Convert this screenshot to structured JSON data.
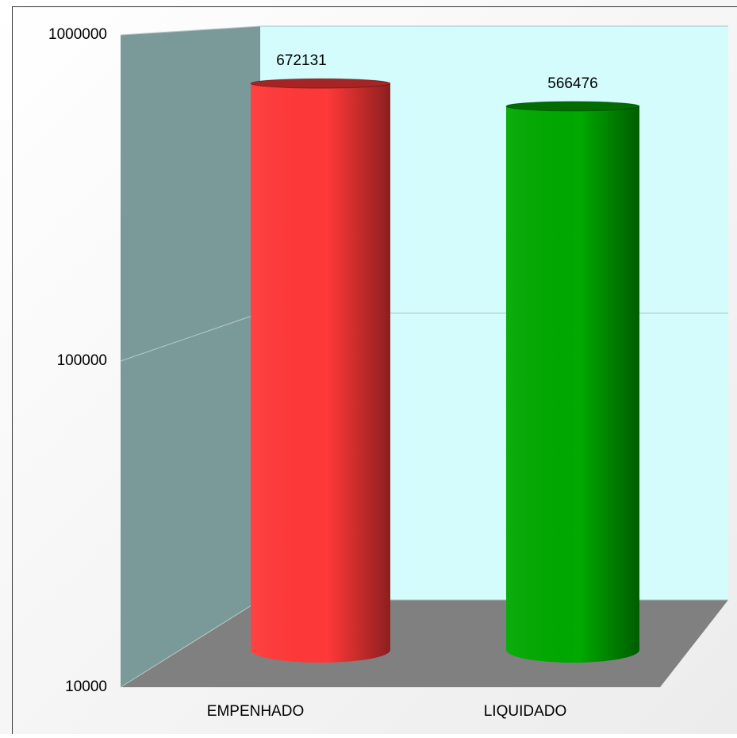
{
  "chart_data": {
    "type": "bar",
    "log_scale": true,
    "grid": true,
    "categories": [
      "EMPENHADO",
      "LIQUIDADO"
    ],
    "values": [
      672131,
      566476
    ],
    "colors": [
      "#ff3838",
      "#00a800"
    ],
    "ylim": [
      10000,
      1000000
    ],
    "yticks": [
      10000,
      100000,
      1000000
    ]
  }
}
